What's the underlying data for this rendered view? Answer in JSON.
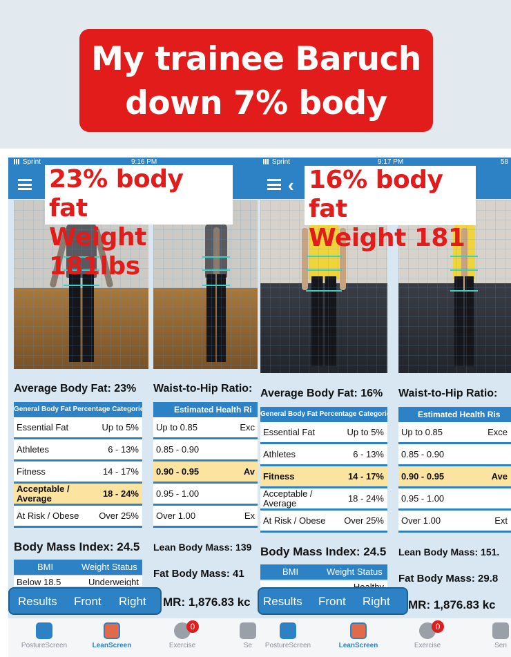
{
  "headline": {
    "line1": "My trainee Baruch",
    "line2": "down 7% body"
  },
  "panels": [
    {
      "status": {
        "carrier": "Sprint",
        "time": "9:16 PM"
      },
      "overlay": {
        "line1": "23% body fat",
        "line2": "Weight 181lbs"
      },
      "avg_body_fat": "Average Body Fat: 23%",
      "waist_hip": "Waist-to-Hip Ratio:",
      "bf_table": {
        "header": "General Body Fat Percentage Categories",
        "rows": [
          {
            "label": "Essential Fat",
            "value": "Up to 5%"
          },
          {
            "label": "Athletes",
            "value": "6 - 13%"
          },
          {
            "label": "Fitness",
            "value": "14 - 17%"
          },
          {
            "label": "Acceptable / Average",
            "value": "18 - 24%"
          },
          {
            "label": "At Risk / Obese",
            "value": "Over 25%"
          }
        ],
        "highlight": 3
      },
      "wh_table": {
        "header": "Estimated Health Ri",
        "rows": [
          {
            "label": "Up to 0.85",
            "value": "Exc"
          },
          {
            "label": "0.85 - 0.90",
            "value": ""
          },
          {
            "label": "0.90 - 0.95",
            "value": "Av"
          },
          {
            "label": "0.95 - 1.00",
            "value": ""
          },
          {
            "label": "Over 1.00",
            "value": "Ex"
          }
        ],
        "highlight": 2
      },
      "bmi": "Body Mass Index: 24.5",
      "lean_mass": "Lean Body Mass: 139",
      "fat_mass": "Fat Body Mass: 41",
      "bmr": "MR: 1,876.83 kc",
      "bmi_table": {
        "col1": "BMI",
        "col2": "Weight Status",
        "row_label": "Below 18.5",
        "row_value": "Underweight"
      }
    },
    {
      "status": {
        "carrier": "Sprint",
        "time": "9:17 PM",
        "battery": "58"
      },
      "overlay": {
        "line1": "16% body fat",
        "line2": "Weight 181"
      },
      "avg_body_fat": "Average Body Fat: 16%",
      "waist_hip": "Waist-to-Hip Ratio:",
      "bf_table": {
        "header": "General Body Fat Percentage Categories",
        "rows": [
          {
            "label": "Essential Fat",
            "value": "Up to 5%"
          },
          {
            "label": "Athletes",
            "value": "6 - 13%"
          },
          {
            "label": "Fitness",
            "value": "14 - 17%"
          },
          {
            "label": "Acceptable / Average",
            "value": "18 - 24%"
          },
          {
            "label": "At Risk / Obese",
            "value": "Over 25%"
          }
        ],
        "highlight": 2
      },
      "wh_table": {
        "header": "Estimated Health Ris",
        "rows": [
          {
            "label": "Up to 0.85",
            "value": "Exce"
          },
          {
            "label": "0.85 - 0.90",
            "value": ""
          },
          {
            "label": "0.90 - 0.95",
            "value": "Ave"
          },
          {
            "label": "0.95 - 1.00",
            "value": ""
          },
          {
            "label": "Over 1.00",
            "value": "Ext"
          }
        ],
        "highlight": 2
      },
      "bmi": "Body Mass Index: 24.5",
      "lean_mass": "Lean Body Mass: 151.",
      "fat_mass": "Fat Body Mass: 29.8",
      "bmr": "MR: 1,876.83 kc",
      "bmi_table": {
        "col1": "BMI",
        "col2": "Weight Status",
        "row_label": "",
        "row_value": "Healthy"
      }
    }
  ],
  "tabs": [
    "Results",
    "Front",
    "Right"
  ],
  "bottom_nav": [
    "PostureScreen",
    "LeanScreen",
    "Exercise",
    "Se",
    "Sen"
  ],
  "exercise_badge": "0",
  "colors": {
    "accent": "#2c82c4",
    "red": "#e21b1b",
    "highlight": "#fbe3a0"
  }
}
